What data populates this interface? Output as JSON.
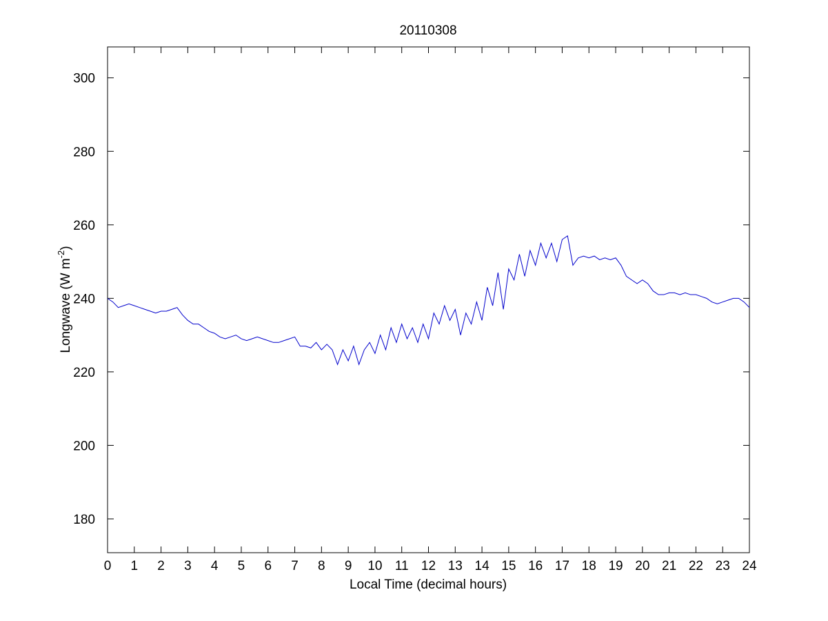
{
  "chart_data": {
    "type": "line",
    "title": "20110308",
    "xlabel": "Local Time (decimal hours)",
    "ylabel": [
      "Longwave (W m",
      "-2",
      ")"
    ],
    "xlim": [
      0,
      24
    ],
    "xticks": [
      0,
      1,
      2,
      3,
      4,
      5,
      6,
      7,
      8,
      9,
      10,
      11,
      12,
      13,
      14,
      15,
      16,
      17,
      18,
      19,
      20,
      21,
      22,
      23,
      24
    ],
    "ylim": [
      170.8,
      308.4
    ],
    "yticks": [
      180,
      200,
      220,
      240,
      260,
      280,
      300
    ],
    "grid": false,
    "color": "#0000cc",
    "x": [
      0,
      0.2,
      0.4,
      0.6,
      0.8,
      1,
      1.2,
      1.4,
      1.6,
      1.8,
      2,
      2.2,
      2.4,
      2.6,
      2.8,
      3,
      3.2,
      3.4,
      3.6,
      3.8,
      4,
      4.2,
      4.4,
      4.6,
      4.8,
      5,
      5.2,
      5.4,
      5.6,
      5.8,
      6,
      6.2,
      6.4,
      6.6,
      6.8,
      7,
      7.2,
      7.4,
      7.6,
      7.8,
      8,
      8.2,
      8.4,
      8.6,
      8.8,
      9,
      9.2,
      9.4,
      9.6,
      9.8,
      10,
      10.2,
      10.4,
      10.6,
      10.8,
      11,
      11.2,
      11.4,
      11.6,
      11.8,
      12,
      12.2,
      12.4,
      12.6,
      12.8,
      13,
      13.2,
      13.4,
      13.6,
      13.8,
      14,
      14.2,
      14.4,
      14.6,
      14.8,
      15,
      15.2,
      15.4,
      15.6,
      15.8,
      16,
      16.2,
      16.4,
      16.6,
      16.8,
      17,
      17.2,
      17.4,
      17.6,
      17.8,
      18,
      18.2,
      18.4,
      18.6,
      18.8,
      19,
      19.2,
      19.4,
      19.6,
      19.8,
      20,
      20.2,
      20.4,
      20.6,
      20.8,
      21,
      21.2,
      21.4,
      21.6,
      21.8,
      22,
      22.2,
      22.4,
      22.6,
      22.8,
      23,
      23.2,
      23.4,
      23.6,
      23.8,
      24
    ],
    "values": [
      240,
      239,
      237.5,
      238,
      238.5,
      238,
      237.5,
      237,
      236.5,
      236,
      236.5,
      236.5,
      237,
      237.5,
      235.5,
      234,
      233,
      233,
      232,
      231,
      230.5,
      229.5,
      229,
      229.5,
      230,
      229,
      228.5,
      229,
      229.5,
      229,
      228.5,
      228,
      228,
      228.5,
      229,
      229.5,
      227,
      227,
      226.5,
      228,
      226,
      227.5,
      226,
      222,
      226,
      223,
      227,
      222,
      226,
      228,
      225,
      230,
      226,
      232,
      228,
      233,
      229,
      232,
      228,
      233,
      229,
      236,
      233,
      238,
      234,
      237,
      230,
      236,
      233,
      239,
      234,
      243,
      238,
      247,
      237,
      248,
      245,
      252,
      246,
      253,
      249,
      255,
      251,
      255,
      250,
      256,
      257,
      249,
      251,
      251.5,
      251,
      251.5,
      250.5,
      251,
      250.5,
      251,
      249,
      246,
      245,
      244,
      245,
      244,
      242,
      241,
      241,
      241.5,
      241.5,
      241,
      241.5,
      241,
      241,
      240.5,
      240,
      239,
      238.5,
      239,
      239.5,
      240,
      240,
      239,
      237.5
    ]
  }
}
